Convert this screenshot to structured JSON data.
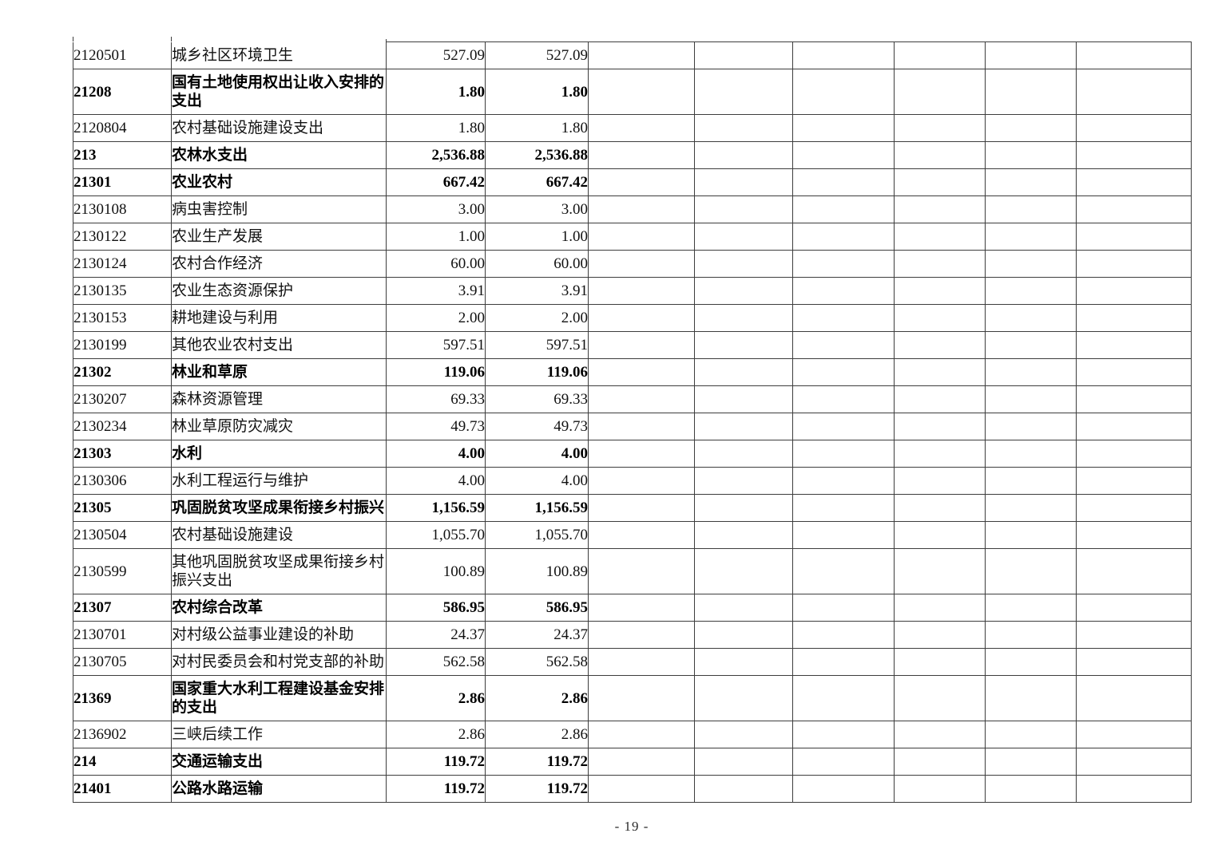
{
  "page": {
    "number_label": "- 19 -"
  },
  "table": {
    "visible_header": "",
    "empty_column_count": 6,
    "rows": [
      {
        "code": "2120501",
        "name": "城乡社区环境卫生",
        "v1": "527.09",
        "v2": "527.09",
        "bold": false
      },
      {
        "code": "21208",
        "name": "国有土地使用权出让收入安排的\n支出",
        "v1": "1.80",
        "v2": "1.80",
        "bold": true
      },
      {
        "code": "2120804",
        "name": "农村基础设施建设支出",
        "v1": "1.80",
        "v2": "1.80",
        "bold": false
      },
      {
        "code": "213",
        "name": "农林水支出",
        "v1": "2,536.88",
        "v2": "2,536.88",
        "bold": true
      },
      {
        "code": "21301",
        "name": "农业农村",
        "v1": "667.42",
        "v2": "667.42",
        "bold": true
      },
      {
        "code": "2130108",
        "name": "病虫害控制",
        "v1": "3.00",
        "v2": "3.00",
        "bold": false
      },
      {
        "code": "2130122",
        "name": "农业生产发展",
        "v1": "1.00",
        "v2": "1.00",
        "bold": false
      },
      {
        "code": "2130124",
        "name": "农村合作经济",
        "v1": "60.00",
        "v2": "60.00",
        "bold": false
      },
      {
        "code": "2130135",
        "name": "农业生态资源保护",
        "v1": "3.91",
        "v2": "3.91",
        "bold": false
      },
      {
        "code": "2130153",
        "name": "耕地建设与利用",
        "v1": "2.00",
        "v2": "2.00",
        "bold": false
      },
      {
        "code": "2130199",
        "name": "其他农业农村支出",
        "v1": "597.51",
        "v2": "597.51",
        "bold": false
      },
      {
        "code": "21302",
        "name": "林业和草原",
        "v1": "119.06",
        "v2": "119.06",
        "bold": true
      },
      {
        "code": "2130207",
        "name": "森林资源管理",
        "v1": "69.33",
        "v2": "69.33",
        "bold": false
      },
      {
        "code": "2130234",
        "name": "林业草原防灾减灾",
        "v1": "49.73",
        "v2": "49.73",
        "bold": false
      },
      {
        "code": "21303",
        "name": "水利",
        "v1": "4.00",
        "v2": "4.00",
        "bold": true
      },
      {
        "code": "2130306",
        "name": "水利工程运行与维护",
        "v1": "4.00",
        "v2": "4.00",
        "bold": false
      },
      {
        "code": "21305",
        "name": "巩固脱贫攻坚成果衔接乡村振兴",
        "v1": "1,156.59",
        "v2": "1,156.59",
        "bold": true
      },
      {
        "code": "2130504",
        "name": "农村基础设施建设",
        "v1": "1,055.70",
        "v2": "1,055.70",
        "bold": false
      },
      {
        "code": "2130599",
        "name": "其他巩固脱贫攻坚成果衔接乡村\n振兴支出",
        "v1": "100.89",
        "v2": "100.89",
        "bold": false
      },
      {
        "code": "21307",
        "name": "农村综合改革",
        "v1": "586.95",
        "v2": "586.95",
        "bold": true
      },
      {
        "code": "2130701",
        "name": "对村级公益事业建设的补助",
        "v1": "24.37",
        "v2": "24.37",
        "bold": false
      },
      {
        "code": "2130705",
        "name": "对村民委员会和村党支部的补助",
        "v1": "562.58",
        "v2": "562.58",
        "bold": false
      },
      {
        "code": "21369",
        "name": "国家重大水利工程建设基金安排\n的支出",
        "v1": "2.86",
        "v2": "2.86",
        "bold": true
      },
      {
        "code": "2136902",
        "name": "三峡后续工作",
        "v1": "2.86",
        "v2": "2.86",
        "bold": false
      },
      {
        "code": "214",
        "name": "交通运输支出",
        "v1": "119.72",
        "v2": "119.72",
        "bold": true
      },
      {
        "code": "21401",
        "name": "公路水路运输",
        "v1": "119.72",
        "v2": "119.72",
        "bold": true
      }
    ]
  }
}
